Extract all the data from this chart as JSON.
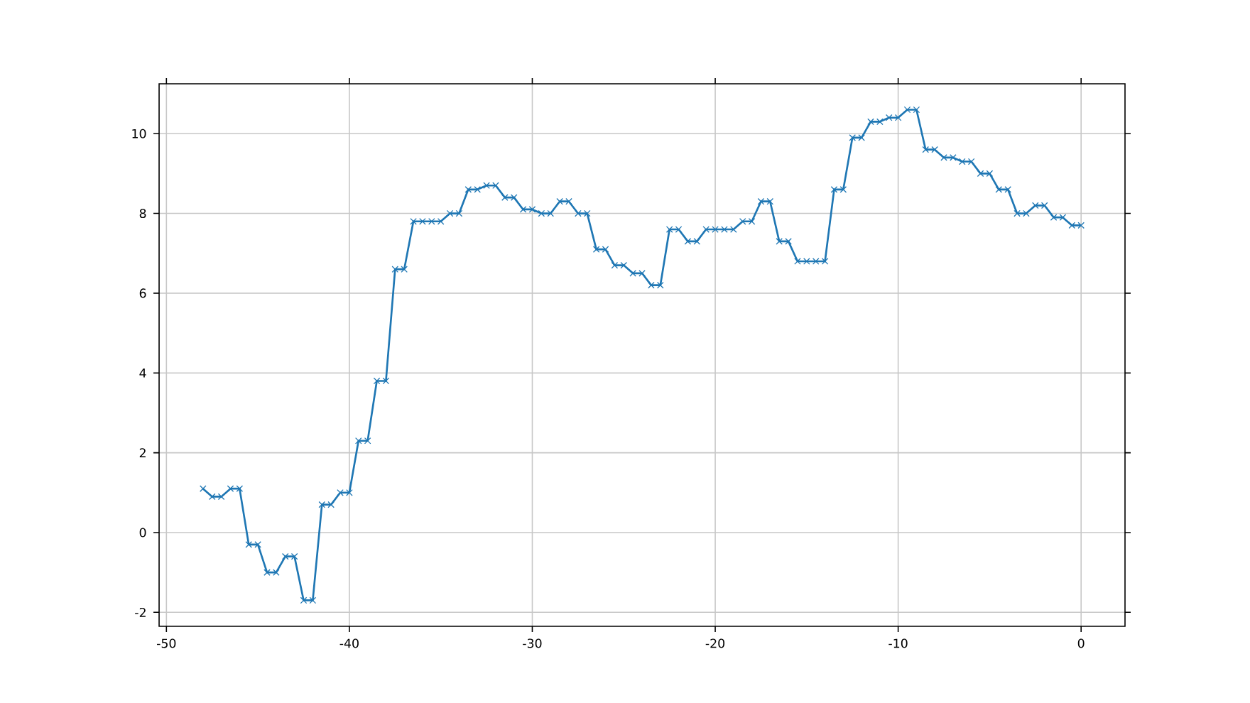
{
  "chart_data": {
    "type": "line",
    "x": [
      -48,
      -47.5,
      -47,
      -46.5,
      -46,
      -45.5,
      -45,
      -44.5,
      -44,
      -43.5,
      -43,
      -42.5,
      -42,
      -41.5,
      -41,
      -40.5,
      -40,
      -39.5,
      -39,
      -38.5,
      -38,
      -37.5,
      -37,
      -36.5,
      -36,
      -35.5,
      -35,
      -34.5,
      -34,
      -33.5,
      -33,
      -32.5,
      -32,
      -31.5,
      -31,
      -30.5,
      -30,
      -29.5,
      -29,
      -28.5,
      -28,
      -27.5,
      -27,
      -26.5,
      -26,
      -25.5,
      -25,
      -24.5,
      -24,
      -23.5,
      -23,
      -22.5,
      -22,
      -21.5,
      -21,
      -20.5,
      -20,
      -19.5,
      -19,
      -18.5,
      -18,
      -17.5,
      -17,
      -16.5,
      -16,
      -15.5,
      -15,
      -14.5,
      -14,
      -13.5,
      -13,
      -12.5,
      -12,
      -11.5,
      -11,
      -10.5,
      -10,
      -9.5,
      -9,
      -8.5,
      -8,
      -7.5,
      -7,
      -6.5,
      -6,
      -5.5,
      -5,
      -4.5,
      -4,
      -3.5,
      -3,
      -2.5,
      -2,
      -1.5,
      -1,
      -0.5,
      0
    ],
    "series": [
      {
        "color": "#1f77b4",
        "values": [
          1.1,
          0.9,
          0.9,
          1.1,
          1.1,
          -0.3,
          -0.3,
          -1.0,
          -1.0,
          -0.6,
          -0.6,
          -1.7,
          -1.7,
          0.7,
          0.7,
          1.0,
          1.0,
          2.3,
          2.3,
          3.8,
          3.8,
          6.6,
          6.6,
          7.8,
          7.8,
          7.8,
          7.8,
          8.0,
          8.0,
          8.6,
          8.6,
          8.7,
          8.7,
          8.4,
          8.4,
          8.1,
          8.1,
          8.0,
          8.0,
          8.3,
          8.3,
          8.0,
          8.0,
          7.1,
          7.1,
          6.7,
          6.7,
          6.5,
          6.5,
          6.2,
          6.2,
          7.6,
          7.6,
          7.3,
          7.3,
          7.6,
          7.6,
          7.6,
          7.6,
          7.8,
          7.8,
          8.3,
          8.3,
          7.3,
          7.3,
          6.8,
          6.8,
          6.8,
          6.8,
          8.6,
          8.6,
          9.9,
          9.9,
          10.3,
          10.3,
          10.4,
          10.4,
          10.6,
          10.6,
          9.6,
          9.6,
          9.4,
          9.4,
          9.3,
          9.3,
          9.0,
          9.0,
          8.6,
          8.6,
          8.0,
          8.0,
          8.2,
          8.2,
          7.9,
          7.9,
          7.7,
          7.7
        ]
      }
    ],
    "xlim": [
      -50.4,
      2.4
    ],
    "ylim": [
      -2.35,
      11.25
    ],
    "xticks": [
      -50,
      -40,
      -30,
      -20,
      -10,
      0
    ],
    "yticks": [
      -2,
      0,
      2,
      4,
      6,
      8,
      10
    ],
    "grid": true,
    "marker": "cross",
    "line_style": "solid"
  }
}
